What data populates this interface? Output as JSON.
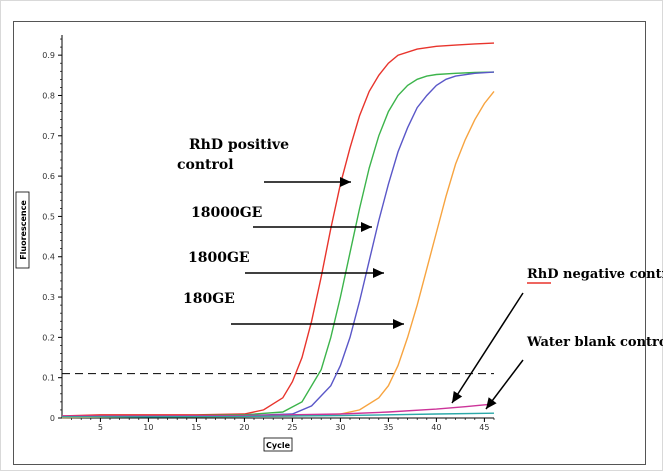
{
  "chart_data": {
    "type": "line",
    "xlabel": "Cycle",
    "ylabel": "Fluorescence",
    "xlim": [
      1,
      46
    ],
    "ylim": [
      0,
      0.95
    ],
    "xticks": [
      5,
      10,
      15,
      20,
      25,
      30,
      35,
      40,
      45
    ],
    "yticks": [
      0,
      0.1,
      0.2,
      0.3,
      0.4,
      0.5,
      0.6,
      0.7,
      0.8,
      0.9
    ],
    "threshold": 0.11,
    "series": [
      {
        "color": "#e8342c",
        "x": [
          1,
          5,
          10,
          15,
          20,
          22,
          24,
          25,
          26,
          27,
          28,
          29,
          30,
          31,
          32,
          33,
          34,
          35,
          36,
          38,
          40,
          42,
          44,
          46
        ],
        "y": [
          0.005,
          0.008,
          0.008,
          0.008,
          0.01,
          0.02,
          0.05,
          0.09,
          0.15,
          0.24,
          0.35,
          0.47,
          0.58,
          0.67,
          0.75,
          0.81,
          0.85,
          0.88,
          0.9,
          0.915,
          0.922,
          0.925,
          0.928,
          0.93
        ]
      },
      {
        "color": "#3cb44b",
        "x": [
          1,
          5,
          10,
          15,
          20,
          24,
          26,
          28,
          29,
          30,
          31,
          32,
          33,
          34,
          35,
          36,
          37,
          38,
          39,
          40,
          42,
          44,
          46
        ],
        "y": [
          0.003,
          0.005,
          0.005,
          0.006,
          0.008,
          0.015,
          0.04,
          0.12,
          0.2,
          0.3,
          0.41,
          0.52,
          0.62,
          0.7,
          0.76,
          0.8,
          0.825,
          0.84,
          0.848,
          0.852,
          0.855,
          0.857,
          0.858
        ]
      },
      {
        "color": "#5a57c8",
        "x": [
          1,
          5,
          10,
          15,
          20,
          25,
          27,
          29,
          30,
          31,
          32,
          33,
          34,
          35,
          36,
          37,
          38,
          39,
          40,
          41,
          42,
          44,
          46
        ],
        "y": [
          0.002,
          0.004,
          0.004,
          0.005,
          0.006,
          0.01,
          0.03,
          0.08,
          0.13,
          0.2,
          0.29,
          0.39,
          0.49,
          0.58,
          0.66,
          0.72,
          0.77,
          0.8,
          0.825,
          0.84,
          0.848,
          0.855,
          0.858
        ]
      },
      {
        "color": "#f7a440",
        "x": [
          1,
          5,
          10,
          15,
          20,
          25,
          30,
          32,
          34,
          35,
          36,
          37,
          38,
          39,
          40,
          41,
          42,
          43,
          44,
          45,
          46
        ],
        "y": [
          0.001,
          0.002,
          0.003,
          0.003,
          0.004,
          0.005,
          0.01,
          0.02,
          0.05,
          0.08,
          0.13,
          0.2,
          0.28,
          0.37,
          0.46,
          0.55,
          0.63,
          0.69,
          0.74,
          0.78,
          0.81
        ]
      },
      {
        "color": "#cc3399",
        "x": [
          1,
          10,
          20,
          30,
          35,
          40,
          43,
          46
        ],
        "y": [
          0.005,
          0.005,
          0.006,
          0.01,
          0.015,
          0.022,
          0.028,
          0.035
        ]
      },
      {
        "color": "#2aa8a8",
        "x": [
          1,
          10,
          20,
          30,
          40,
          46
        ],
        "y": [
          0.003,
          0.003,
          0.004,
          0.006,
          0.01,
          0.012
        ]
      }
    ],
    "annotations": [
      {
        "lines": [
          "RhD positive",
          "control"
        ]
      },
      {
        "lines": [
          "18000GE"
        ]
      },
      {
        "lines": [
          "1800GE"
        ]
      },
      {
        "lines": [
          "180GE"
        ]
      },
      {
        "lines": [
          "RhD negative control"
        ]
      },
      {
        "lines": [
          "Water blank control"
        ]
      }
    ]
  }
}
